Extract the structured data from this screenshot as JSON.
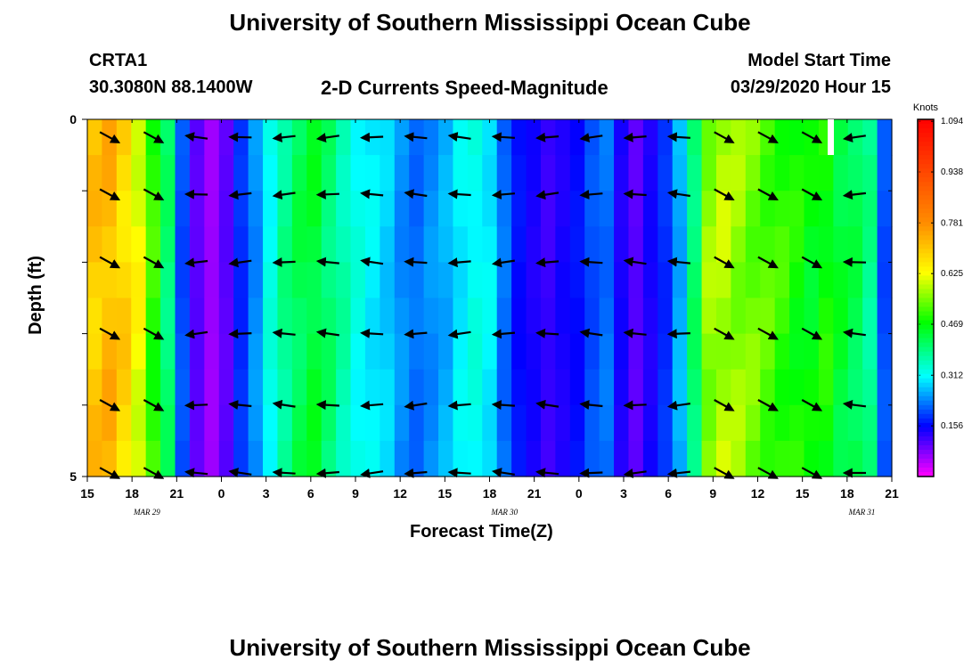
{
  "header": {
    "title_top": "University of Southern Mississippi Ocean Cube",
    "station": "CRTA1",
    "coords": "30.3080N 88.1400W",
    "subtitle": "2-D Currents Speed-Magnitude",
    "model_label": "Model Start Time",
    "model_time": "03/29/2020 Hour 15",
    "title_bottom": "University of Southern Mississippi Ocean Cube"
  },
  "chart_data": {
    "type": "heatmap",
    "title": "2-D Currents Speed-Magnitude",
    "xlabel": "Forecast Time(Z)",
    "ylabel": "Depth (ft)",
    "ylim": [
      0,
      5
    ],
    "y_ticks": [
      "0",
      "5"
    ],
    "x_tick_labels": [
      "15",
      "18",
      "21",
      "0",
      "3",
      "6",
      "9",
      "12",
      "15",
      "18",
      "21",
      "0",
      "3",
      "6",
      "9",
      "12",
      "15",
      "18",
      "21"
    ],
    "date_labels": [
      {
        "text": "MAR 29",
        "hour_index": 4
      },
      {
        "text": "MAR 30",
        "hour_index": 28
      },
      {
        "text": "MAR 31",
        "hour_index": 52
      }
    ],
    "hours": 55,
    "depth_rows": 10,
    "column_speeds": [
      0.7,
      0.72,
      0.68,
      0.62,
      0.5,
      0.4,
      0.2,
      0.1,
      0.06,
      0.1,
      0.18,
      0.24,
      0.32,
      0.38,
      0.42,
      0.44,
      0.4,
      0.36,
      0.32,
      0.3,
      0.28,
      0.24,
      0.22,
      0.24,
      0.26,
      0.3,
      0.32,
      0.3,
      0.22,
      0.16,
      0.14,
      0.12,
      0.14,
      0.16,
      0.2,
      0.22,
      0.14,
      0.1,
      0.14,
      0.18,
      0.26,
      0.4,
      0.56,
      0.58,
      0.56,
      0.54,
      0.52,
      0.5,
      0.48,
      0.46,
      0.48,
      0.44,
      0.42,
      0.38,
      0.2
    ],
    "colorbar": {
      "label": "Knots",
      "ticks": [
        1.094,
        0.938,
        0.781,
        0.625,
        0.469,
        0.312,
        0.156
      ],
      "min": 0.0,
      "max": 1.1
    },
    "colors": {
      "red": "#ff0000",
      "orange": "#ff8c00",
      "yellow": "#ffff00",
      "green": "#00ff00",
      "cyan": "#00ffff",
      "blue": "#0000ff",
      "magenta": "#ff00ff"
    },
    "arrow_rows": [
      0.25,
      1.05,
      2.0,
      3.0,
      4.0,
      4.95
    ],
    "arrow_columns": [
      1,
      4,
      7,
      10,
      13,
      16,
      19,
      22,
      25,
      28,
      31,
      34,
      37,
      40,
      43,
      46,
      49,
      52
    ]
  }
}
